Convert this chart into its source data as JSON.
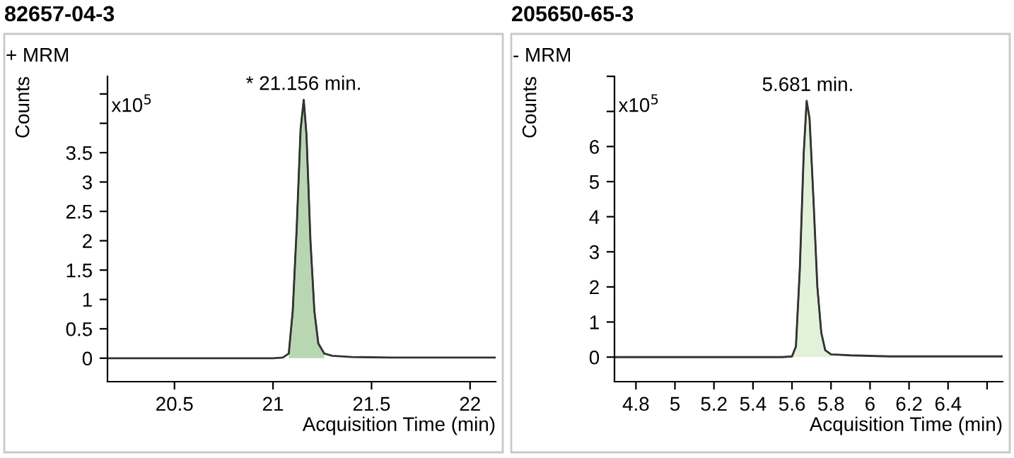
{
  "chart_data": [
    {
      "type": "line",
      "title": "82657-04-3",
      "subtitle": "+ MRM",
      "xlabel": "Acquisition Time (min)",
      "ylabel": "Counts",
      "annotations": [
        "x10$^{5}$",
        {
          "text": "* 21.156 min.",
          "x": 21.156,
          "y": 4.4
        }
      ],
      "series": [
        {
          "type": "area",
          "color": "#b9d6b3",
          "x": [
            21.08,
            21.1,
            21.12,
            21.14,
            21.156,
            21.17,
            21.19,
            21.21,
            21.23,
            21.26
          ],
          "values": [
            0.08,
            0.8,
            2.2,
            3.9,
            4.4,
            3.8,
            2.0,
            0.8,
            0.25,
            0.08
          ]
        },
        {
          "color": "#333333",
          "x": [
            20.16,
            21.0,
            21.05,
            21.08,
            21.1,
            21.12,
            21.14,
            21.156,
            21.17,
            21.19,
            21.21,
            21.23,
            21.26,
            21.3,
            21.4,
            21.6,
            22.13
          ],
          "values": [
            0,
            0,
            0.01,
            0.08,
            0.8,
            2.2,
            3.9,
            4.4,
            3.8,
            2.0,
            0.8,
            0.25,
            0.08,
            0.04,
            0.02,
            0.01,
            0.01
          ]
        }
      ],
      "xlim": [
        20.16,
        22.13
      ],
      "xticks": [
        20.5,
        21,
        21.5,
        22
      ],
      "ylim": [
        -0.4,
        4.8
      ],
      "yticks": [
        0,
        0.5,
        1,
        1.5,
        2,
        2.5,
        3,
        3.5,
        {
          "value": 4,
          "label": null
        },
        {
          "value": 4.5,
          "label": null
        }
      ],
      "grid": false,
      "legend": false
    },
    {
      "type": "line",
      "title": "205650-65-3",
      "subtitle": "- MRM",
      "xlabel": "Acquisition Time (min)",
      "ylabel": "Counts",
      "annotations": [
        "x10$^{5}$",
        {
          "text": "5.681 min.",
          "x": 5.681,
          "y": 7.3
        }
      ],
      "series": [
        {
          "type": "area",
          "color": "#e2f1da",
          "x": [
            5.6,
            5.62,
            5.64,
            5.66,
            5.675,
            5.69,
            5.71,
            5.73,
            5.75,
            5.77,
            5.8
          ],
          "values": [
            0.02,
            0.3,
            2.5,
            5.8,
            7.3,
            6.8,
            4.5,
            2.0,
            0.7,
            0.2,
            0.08
          ]
        },
        {
          "color": "#333333",
          "x": [
            4.69,
            5.55,
            5.6,
            5.62,
            5.64,
            5.66,
            5.675,
            5.69,
            5.71,
            5.73,
            5.75,
            5.77,
            5.8,
            5.9,
            6.1,
            6.68
          ],
          "values": [
            0,
            0,
            0.02,
            0.3,
            2.5,
            5.8,
            7.3,
            6.8,
            4.5,
            2.0,
            0.7,
            0.2,
            0.08,
            0.05,
            0.02,
            0.02
          ]
        }
      ],
      "xlim": [
        4.69,
        6.68
      ],
      "xticks": [
        4.8,
        5,
        5.2,
        5.4,
        5.6,
        5.8,
        6,
        6.2,
        6.4,
        {
          "value": 6.6,
          "label": null
        }
      ],
      "ylim": [
        -0.7,
        8
      ],
      "yticks": [
        0,
        1,
        2,
        3,
        4,
        5,
        6,
        {
          "value": 7,
          "label": null
        },
        {
          "value": 8,
          "label": null
        }
      ],
      "grid": false,
      "legend": false
    }
  ]
}
